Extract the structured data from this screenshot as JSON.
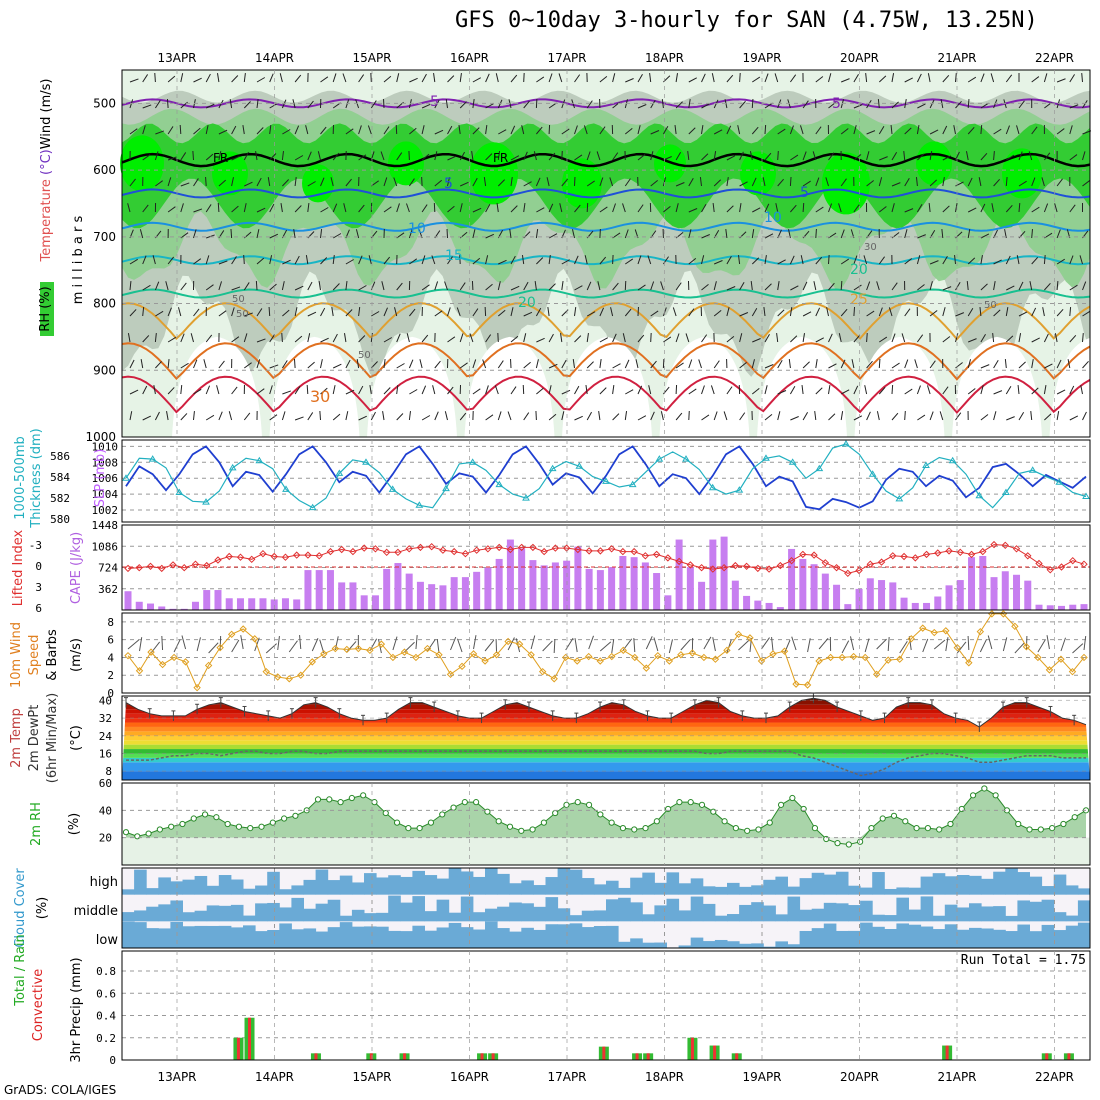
{
  "title": "GFS 0~10day 3-hourly for SAN (4.75W, 13.25N)",
  "footer": "GrADS: COLA/IGES",
  "dates": [
    "13APR",
    "14APR",
    "15APR",
    "16APR",
    "17APR",
    "18APR",
    "19APR",
    "20APR",
    "21APR",
    "22APR"
  ],
  "colors": {
    "rh_green": "#33cc33",
    "rh_bright": "#00ee00",
    "rh_pale": "#e6f3e6",
    "rh_grey": "#b5c4b5",
    "slp": "#1f3fd0",
    "thickness": "#22b0c0",
    "cape": "#c77ef0",
    "lifted_index": "#e03030",
    "wind_speed": "#e0a020",
    "rh2m": "#55b055",
    "cloud": "#6aaad6",
    "precip_total": "#33bb33",
    "precip_conv": "#ee3333",
    "grid": "#999999"
  },
  "chart_data": [
    {
      "panel": "upper-air",
      "type": "heatmap",
      "ylabel_parts": [
        "Wind (m/s)",
        "Temperature (°C)"
      ],
      "ylabel": "m i l l i b a r s",
      "legend_label": "RH (%)",
      "y_ticks": [
        500,
        600,
        700,
        800,
        900,
        1000
      ],
      "ylim": [
        1000,
        450
      ],
      "contour_labels": [
        "5",
        "5",
        "FR",
        "FR",
        "5",
        "5",
        "10",
        "10",
        "15",
        "20",
        "20",
        "25",
        "30",
        "50",
        "50",
        "50",
        "30",
        "50"
      ],
      "isotherms": [
        {
          "label": "-5",
          "level_mb": 500
        },
        {
          "label": "FR",
          "level_mb": 585
        },
        {
          "label": "5",
          "level_mb": 635
        },
        {
          "label": "10",
          "level_mb": 685
        },
        {
          "label": "15",
          "level_mb": 735
        },
        {
          "label": "20",
          "level_mb": 785
        },
        {
          "label": "25",
          "level_mb": 840
        },
        {
          "label": "30",
          "level_mb": 900
        },
        {
          "label": "35",
          "level_mb": 950
        }
      ]
    },
    {
      "panel": "slp-thickness",
      "type": "line",
      "ylabel_left": "1000-500mb Thickness (dm)",
      "ylabel_right": "SLP (mb)",
      "y_ticks_left": [
        580,
        582,
        584,
        586
      ],
      "y_ticks_right": [
        1002,
        1004,
        1006,
        1008,
        1010
      ],
      "ylim_right": [
        1000.5,
        1010.8
      ],
      "series": [
        {
          "name": "SLP (mb)",
          "values": [
            1005,
            1007.5,
            1006.5,
            1004.5,
            1006.5,
            1009,
            1010,
            1008,
            1005,
            1006.8,
            1006.4,
            1004.3,
            1006.5,
            1009,
            1010,
            1008,
            1005.5,
            1006.8,
            1006.3,
            1004.2,
            1006.5,
            1009,
            1010,
            1007.8,
            1005.3,
            1006.6,
            1006.2,
            1004.2,
            1006.4,
            1009,
            1010,
            1007.8,
            1005.2,
            1006.6,
            1006.1,
            1004.1,
            1006.3,
            1009,
            1010,
            1007.7,
            1005,
            1006.5,
            1006,
            1004,
            1006.3,
            1009,
            1010,
            1007.8,
            1005,
            1006.2,
            1005.6,
            1002.4,
            1002.1,
            1003.4,
            1003,
            1002.3,
            1003.1,
            1005.8,
            1007.2,
            1006.8,
            1005,
            1006.3,
            1005.7,
            1003.6,
            1004.8,
            1007.4,
            1007.8,
            1006.5,
            1005,
            1006.4,
            1005.6,
            1004.8,
            1006.2
          ]
        },
        {
          "name": "Thickness (dm)",
          "values": [
            1006,
            1008.5,
            1008.4,
            1007.3,
            1004.2,
            1003.1,
            1003,
            1004.4,
            1007.3,
            1008.5,
            1008.2,
            1007.2,
            1004.6,
            1003.2,
            1002.3,
            1003.5,
            1006.6,
            1008.3,
            1008,
            1006.7,
            1004.6,
            1003.4,
            1002.6,
            1002.3,
            1004.7,
            1007.8,
            1008,
            1007,
            1005.2,
            1004,
            1003.5,
            1004.7,
            1007.2,
            1008.1,
            1007.5,
            1006.2,
            1005.6,
            1004.9,
            1005.2,
            1006.8,
            1008.4,
            1009.3,
            1008.4,
            1007.1,
            1004.8,
            1004,
            1004.5,
            1007.2,
            1008.5,
            1008.8,
            1008,
            1006,
            1007.2,
            1009.8,
            1010.3,
            1009,
            1006.5,
            1004.4,
            1003.4,
            1004.8,
            1007.6,
            1008.6,
            1008.2,
            1006.5,
            1003.8,
            1002.3,
            1004.2,
            1006.6,
            1007,
            1006.2,
            1005.5,
            1004.2,
            1003.7
          ]
        }
      ]
    },
    {
      "panel": "cape-li",
      "type": "bar",
      "ylabel_left": "Lifted Index",
      "ylabel_right": "CAPE (J/kg)",
      "y_ticks_left": [
        "-3",
        "0",
        "3",
        "6"
      ],
      "y_ticks_right": [
        362,
        724,
        1086,
        1448
      ],
      "ylim_right": [
        0,
        1448
      ],
      "series": [
        {
          "name": "CAPE (J/kg)",
          "values": [
            320,
            140,
            110,
            60,
            20,
            20,
            140,
            340,
            340,
            200,
            200,
            200,
            200,
            180,
            200,
            180,
            680,
            680,
            680,
            470,
            470,
            250,
            250,
            700,
            800,
            620,
            480,
            440,
            420,
            560,
            560,
            650,
            720,
            870,
            1200,
            1050,
            850,
            760,
            810,
            840,
            1080,
            700,
            680,
            730,
            920,
            900,
            810,
            630,
            250,
            1200,
            730,
            480,
            1200,
            1250,
            500,
            240,
            160,
            120,
            50,
            1040,
            870,
            780,
            620,
            430,
            100,
            360,
            540,
            510,
            470,
            210,
            120,
            120,
            230,
            420,
            510,
            900,
            920,
            560,
            660,
            600,
            500,
            90,
            80,
            70,
            90,
            100
          ]
        },
        {
          "name": "Lifted Index",
          "values": [
            0.2,
            0.1,
            -0.1,
            0.2,
            -0.3,
            0.1,
            -0.4,
            -0.2,
            -1,
            -1.5,
            -1.4,
            -1.1,
            -1.9,
            -1.5,
            -1.4,
            -1.7,
            -1.7,
            -1.6,
            -2.2,
            -2.5,
            -2.2,
            -2.7,
            -2.6,
            -2.1,
            -2.1,
            -2.6,
            -2.8,
            -2.9,
            -2.4,
            -2.2,
            -1.9,
            -2.4,
            -2.6,
            -2.8,
            -2.5,
            -2.8,
            -2.8,
            -2.2,
            -2.7,
            -2.7,
            -2.5,
            -2.3,
            -2.3,
            -2.6,
            -2.2,
            -2.2,
            -1.6,
            -1.8,
            -1.3,
            -0.8,
            -0.3,
            0.1,
            0.3,
            0.1,
            -0.2,
            -0.1,
            0.2,
            0.3,
            -0.2,
            -0.9,
            -1.8,
            -1.7,
            -0.6,
            0.1,
            0.9,
            0.5,
            -0.4,
            -0.7,
            -1.6,
            -1.5,
            -1.3,
            -1.8,
            -2,
            -2.3,
            -2.1,
            -1.8,
            -2.2,
            -3.2,
            -3.1,
            -2.6,
            -1.6,
            -0.5,
            0.4,
            0,
            -0.9,
            -0.4
          ]
        }
      ]
    },
    {
      "panel": "wind10m",
      "type": "line",
      "ylabel_left": "10m Wind Speed & Barbs",
      "ylabel_right": "(m/s)",
      "y_ticks_right": [
        0,
        2,
        4,
        6,
        8
      ],
      "ylim": [
        0,
        9
      ],
      "series": [
        {
          "name": "Speed",
          "values": [
            4.2,
            2.5,
            4.6,
            3.2,
            4,
            3.5,
            0.6,
            3.1,
            5.1,
            6.6,
            7.2,
            6.1,
            2.4,
            1.8,
            1.6,
            2,
            3.5,
            4.4,
            5,
            4.9,
            5,
            4.8,
            5.5,
            4,
            4.6,
            4,
            5,
            4.3,
            2.1,
            3,
            4.4,
            3.6,
            4.3,
            5.8,
            5.5,
            4.3,
            2.4,
            1.6,
            4,
            3.6,
            4.1,
            3.6,
            4.1,
            4.8,
            4,
            2.8,
            4.2,
            3.6,
            4.3,
            4.5,
            4,
            3.8,
            4.8,
            6.6,
            6.2,
            3.6,
            4.4,
            4.7,
            1,
            0.9,
            3.6,
            4,
            4,
            4.1,
            4,
            2.1,
            3.7,
            3.8,
            6.1,
            7.3,
            6.8,
            7,
            5.1,
            3.4,
            6.9,
            8.9,
            8.9,
            7.5,
            5.2,
            4,
            2.6,
            3.8,
            2.4,
            4
          ]
        }
      ]
    },
    {
      "panel": "temp2m",
      "type": "area",
      "ylabel_left": "2m Temp 2m DewPt (6hr Min/Max)",
      "ylabel_right": "(°C)",
      "y_ticks_right": [
        8,
        16,
        24,
        32,
        40
      ],
      "ylim": [
        4,
        42
      ],
      "series": [
        {
          "name": "2m Temp",
          "values": [
            39,
            36,
            34,
            33,
            33,
            33,
            36,
            38,
            39,
            37,
            35,
            34,
            33,
            32,
            34,
            38,
            39,
            37,
            34,
            32,
            31,
            31,
            32,
            36,
            39,
            39,
            37,
            35,
            33,
            32,
            32,
            35,
            38,
            39,
            37,
            35,
            33,
            32,
            32,
            34,
            37,
            39,
            38,
            35,
            33,
            32,
            32,
            35,
            38,
            40,
            39,
            35,
            33,
            32,
            32,
            33,
            37,
            40,
            41,
            40,
            37,
            35,
            33,
            31,
            32,
            37,
            39,
            39,
            38,
            34,
            32,
            31,
            28,
            32,
            37,
            39,
            39,
            37,
            35,
            32,
            31,
            29
          ]
        },
        {
          "name": "2m DewPt",
          "values": [
            13,
            13,
            13,
            14,
            15,
            15,
            16,
            16,
            15,
            16,
            17,
            17,
            16,
            16,
            17,
            17,
            16,
            16,
            17,
            17,
            17,
            17,
            17,
            17,
            17,
            17,
            17,
            17,
            17,
            17,
            17,
            17,
            17,
            17,
            17,
            17,
            17,
            17,
            17,
            17,
            17,
            17,
            17,
            17,
            17,
            17,
            17,
            17,
            17,
            16,
            16,
            17,
            17,
            17,
            17,
            17,
            17,
            15,
            14,
            12,
            10,
            8,
            6,
            7,
            9,
            12,
            14,
            15,
            16,
            16,
            15,
            14,
            12,
            12,
            13,
            14,
            15,
            15,
            15,
            14,
            14,
            14
          ]
        }
      ]
    },
    {
      "panel": "rh2m",
      "type": "area",
      "ylabel_left": "2m RH",
      "ylabel_right": "(%)",
      "y_ticks_right": [
        20,
        40,
        60
      ],
      "ylim": [
        0,
        60
      ],
      "series": [
        {
          "name": "2m RH",
          "values": [
            24,
            21,
            23,
            26,
            28,
            30,
            34,
            37,
            35,
            30,
            28,
            27,
            28,
            31,
            34,
            36,
            40,
            48,
            48,
            46,
            49,
            51,
            46,
            38,
            31,
            27,
            27,
            31,
            37,
            42,
            46,
            46,
            39,
            32,
            28,
            25,
            26,
            31,
            38,
            44,
            46,
            44,
            37,
            31,
            27,
            26,
            27,
            32,
            41,
            46,
            46,
            44,
            39,
            32,
            27,
            25,
            26,
            31,
            44,
            49,
            41,
            27,
            19,
            16,
            15,
            17,
            27,
            34,
            36,
            32,
            27,
            27,
            26,
            30,
            41,
            51,
            56,
            51,
            40,
            30,
            26,
            26,
            27,
            30,
            35,
            40
          ]
        }
      ]
    },
    {
      "panel": "cloud",
      "type": "area",
      "ylabel_left": "Cloud Cover",
      "ylabel_right": "(%)",
      "y_ticks_right": [
        "high",
        "middle",
        "low"
      ]
    },
    {
      "panel": "precip",
      "type": "bar",
      "ylabel_left": "Total / Rain Convective",
      "ylabel_right": "3hr Precip (mm)",
      "y_ticks_right": [
        0,
        0.2,
        0.4,
        0.6,
        0.8
      ],
      "ylim": [
        0,
        0.98
      ],
      "annotation": "Run Total = 1.75",
      "series": [
        {
          "name": "Total",
          "values": [
            0,
            0,
            0,
            0,
            0,
            0,
            0.2,
            0.38,
            0,
            0,
            0,
            0,
            0,
            0.06,
            0,
            0,
            0,
            0,
            0.06,
            0,
            0,
            0.06,
            0,
            0,
            0,
            0,
            0,
            0,
            0.06,
            0.06,
            0,
            0,
            0,
            0,
            0,
            0,
            0,
            0,
            0,
            0.12,
            0,
            0,
            0.06,
            0.06,
            0,
            0,
            0,
            0.2,
            0,
            0.13,
            0,
            0.06,
            0,
            0,
            0,
            0,
            0,
            0,
            0,
            0,
            0,
            0,
            0,
            0,
            0,
            0,
            0,
            0,
            0,
            0,
            0.13,
            0,
            0,
            0,
            0,
            0,
            0,
            0,
            0,
            0.06,
            0,
            0.06,
            0
          ]
        },
        {
          "name": "Rain Convective",
          "values": [
            0,
            0,
            0,
            0,
            0,
            0,
            0.2,
            0.38,
            0,
            0,
            0,
            0,
            0,
            0.06,
            0,
            0,
            0,
            0,
            0.06,
            0,
            0,
            0.06,
            0,
            0,
            0,
            0,
            0,
            0,
            0.06,
            0.06,
            0,
            0,
            0,
            0,
            0,
            0,
            0,
            0,
            0,
            0.12,
            0,
            0,
            0.06,
            0.06,
            0,
            0,
            0,
            0.2,
            0,
            0.13,
            0,
            0.06,
            0,
            0,
            0,
            0,
            0,
            0,
            0,
            0,
            0,
            0,
            0,
            0,
            0,
            0,
            0,
            0,
            0,
            0,
            0.13,
            0,
            0,
            0,
            0,
            0,
            0,
            0,
            0,
            0.06,
            0,
            0.06,
            0
          ]
        }
      ]
    }
  ]
}
